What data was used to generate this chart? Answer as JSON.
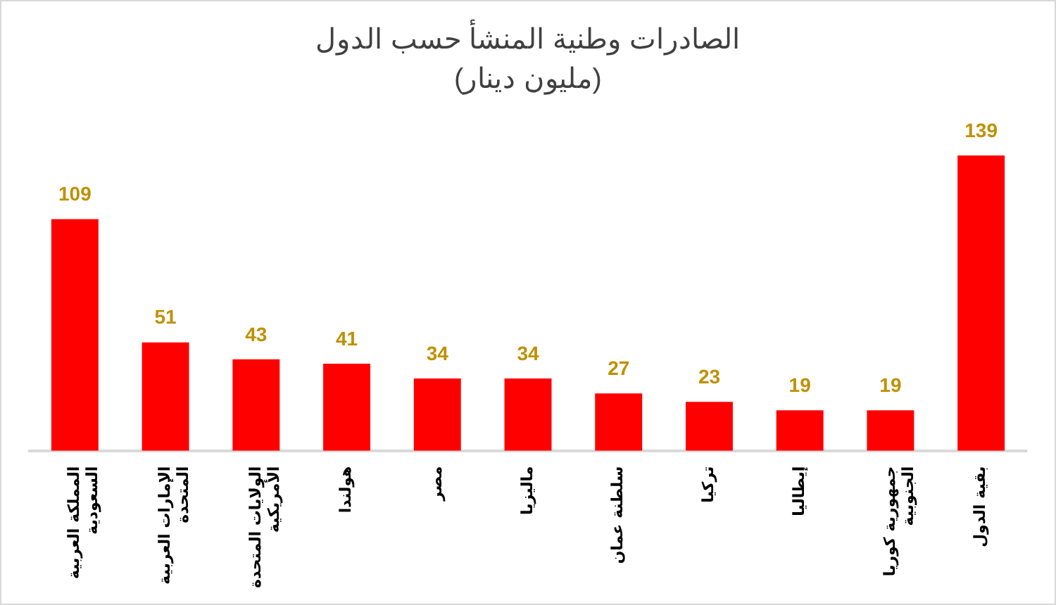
{
  "chart_data": {
    "type": "bar",
    "title": "الصادرات وطنية المنشأ حسب الدول",
    "subtitle": "(مليون دينار)",
    "categories": [
      "المملكة العربية السعودية",
      "الإمارات العربية المتحدة",
      "الولايات المتحدة الأمريكية",
      "هولندا",
      "مصر",
      "ماليزيا",
      "سلطنة عمان",
      "تركيا",
      "إيطاليا",
      "جمهورية كوريا الجنوبية",
      "بقية الدول"
    ],
    "values": [
      109,
      51,
      43,
      41,
      34,
      34,
      27,
      23,
      19,
      19,
      139
    ],
    "color": "#ff0000",
    "data_labels": true,
    "grid": false,
    "legend": false
  }
}
